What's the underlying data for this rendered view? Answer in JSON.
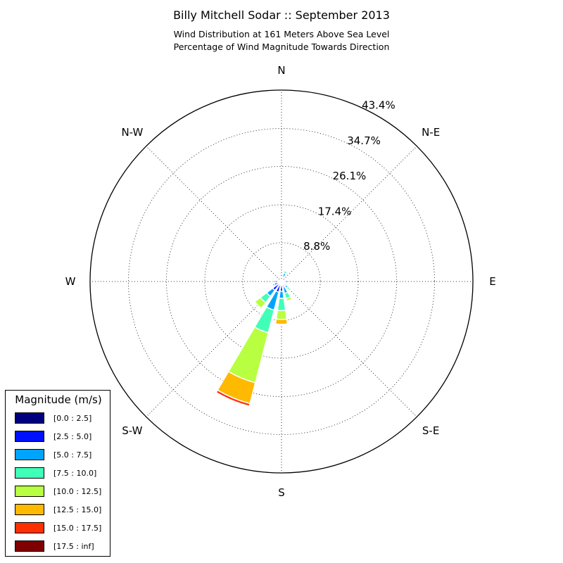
{
  "title": "Billy Mitchell Sodar :: September 2013",
  "subtitle_1": "Wind Distribution at 161 Meters Above Sea Level",
  "subtitle_2": "Percentage of Wind Magnitude Towards Direction",
  "legend": {
    "title": "Magnitude (m/s)",
    "items": [
      {
        "label": "[0.0 : 2.5]",
        "color": "#00007f"
      },
      {
        "label": "[2.5 : 5.0]",
        "color": "#0010ff"
      },
      {
        "label": "[5.0 : 7.5]",
        "color": "#00a4ff"
      },
      {
        "label": "[7.5 : 10.0]",
        "color": "#40ffb7"
      },
      {
        "label": "[10.0 : 12.5]",
        "color": "#b7ff40"
      },
      {
        "label": "[12.5 : 15.0]",
        "color": "#ffb900"
      },
      {
        "label": "[15.0 : 17.5]",
        "color": "#ff3000"
      },
      {
        "label": "[17.5 : inf]",
        "color": "#7f0000"
      }
    ]
  },
  "chart_data": {
    "type": "polar-stacked-bar",
    "title": "Billy Mitchell Sodar :: September 2013",
    "radial_unit": "%",
    "radial_max": 43.4,
    "radial_ticks": [
      8.8,
      17.4,
      26.1,
      34.7,
      43.4
    ],
    "radial_tick_labels": [
      "8.8%",
      "17.4%",
      "26.1%",
      "34.7%",
      "43.4%"
    ],
    "direction_labels": [
      {
        "label": "N",
        "angle": 0
      },
      {
        "label": "N-E",
        "angle": 45
      },
      {
        "label": "E",
        "angle": 90
      },
      {
        "label": "S-E",
        "angle": 135
      },
      {
        "label": "S",
        "angle": 180
      },
      {
        "label": "S-W",
        "angle": 225
      },
      {
        "label": "W",
        "angle": 270
      },
      {
        "label": "N-W",
        "angle": 315
      }
    ],
    "bins": [
      "[0.0 : 2.5]",
      "[2.5 : 5.0]",
      "[5.0 : 7.5]",
      "[7.5 : 10.0]",
      "[10.0 : 12.5]",
      "[12.5 : 15.0]",
      "[15.0 : 17.5]",
      "[17.5 : inf]"
    ],
    "directions": [
      {
        "angle": 0,
        "values": [
          0.2,
          0.1,
          0.1,
          0.0,
          0.0,
          0.0,
          0.0,
          0.0
        ]
      },
      {
        "angle": 22.5,
        "values": [
          0.5,
          0.5,
          1.0,
          0.5,
          0.0,
          0.0,
          0.0,
          0.0
        ]
      },
      {
        "angle": 45,
        "values": [
          0.3,
          0.1,
          0.0,
          0.0,
          0.0,
          0.0,
          0.0,
          0.0
        ]
      },
      {
        "angle": 67.5,
        "values": [
          0.2,
          0.2,
          0.1,
          0.0,
          0.0,
          0.0,
          0.0,
          0.0
        ]
      },
      {
        "angle": 90,
        "values": [
          0.5,
          1.0,
          0.3,
          0.0,
          0.0,
          0.0,
          0.0,
          0.0
        ]
      },
      {
        "angle": 112.5,
        "values": [
          0.4,
          0.5,
          0.3,
          0.0,
          0.0,
          0.0,
          0.0,
          0.0
        ]
      },
      {
        "angle": 135,
        "values": [
          0.5,
          0.7,
          0.7,
          0.5,
          0.4,
          0.0,
          0.0,
          0.0
        ]
      },
      {
        "angle": 157.5,
        "values": [
          0.4,
          0.9,
          1.5,
          1.2,
          0.6,
          0.0,
          0.0,
          0.0
        ]
      },
      {
        "angle": 180,
        "values": [
          0.6,
          1.6,
          1.6,
          2.8,
          2.0,
          1.1,
          0.0,
          0.0
        ]
      },
      {
        "angle": 202.5,
        "values": [
          0.6,
          1.9,
          4.2,
          5.3,
          11.7,
          4.9,
          0.6,
          0.0
        ]
      },
      {
        "angle": 225,
        "values": [
          0.8,
          1.7,
          1.7,
          1.8,
          1.6,
          0.0,
          0.0,
          0.0
        ]
      },
      {
        "angle": 247.5,
        "values": [
          0.6,
          1.1,
          0.4,
          0.0,
          0.0,
          0.0,
          0.0,
          0.0
        ]
      },
      {
        "angle": 270,
        "values": [
          0.5,
          1.0,
          0.4,
          0.0,
          0.0,
          0.0,
          0.0,
          0.0
        ]
      },
      {
        "angle": 292.5,
        "values": [
          0.4,
          0.5,
          0.1,
          0.0,
          0.0,
          0.0,
          0.0,
          0.0
        ]
      },
      {
        "angle": 315,
        "values": [
          0.3,
          0.2,
          0.0,
          0.0,
          0.0,
          0.0,
          0.0,
          0.0
        ]
      },
      {
        "angle": 337.5,
        "values": [
          0.3,
          0.2,
          0.0,
          0.0,
          0.0,
          0.0,
          0.0,
          0.0
        ]
      }
    ],
    "grid": true,
    "legend_position": "bottom-left"
  }
}
